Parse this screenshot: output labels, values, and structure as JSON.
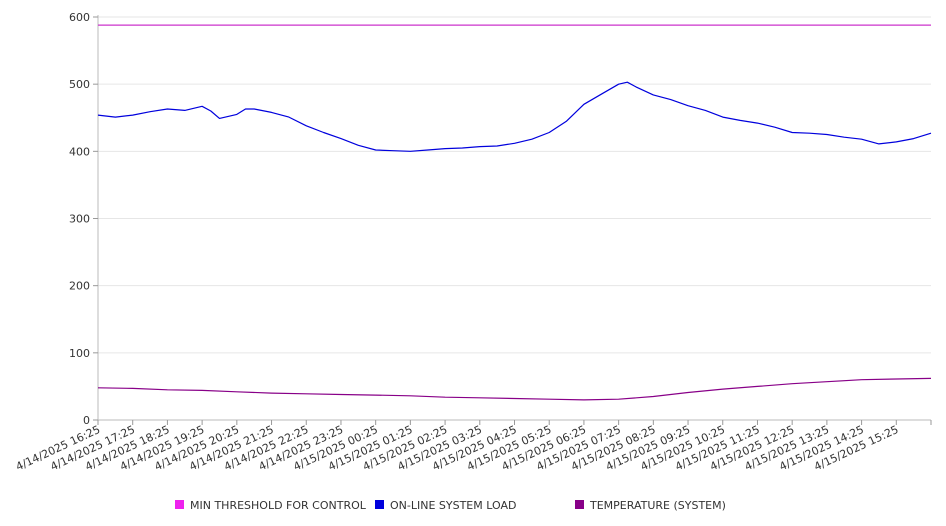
{
  "chart_data": {
    "type": "line",
    "title": "",
    "xlabel": "",
    "ylabel": "",
    "ylim": [
      0,
      600
    ],
    "yticks": [
      "0",
      "100",
      "200",
      "300",
      "400",
      "500",
      "600"
    ],
    "grid": "horizontal",
    "legend_position": "bottom",
    "x_tick_labels": [
      "4/14/2025 16:25",
      "4/14/2025 17:25",
      "4/14/2025 18:25",
      "4/14/2025 19:25",
      "4/14/2025 20:25",
      "4/14/2025 21:25",
      "4/14/2025 22:25",
      "4/14/2025 23:25",
      "4/15/2025 00:25",
      "4/15/2025 01:25",
      "4/15/2025 02:25",
      "4/15/2025 03:25",
      "4/15/2025 04:25",
      "4/15/2025 05:25",
      "4/15/2025 06:25",
      "4/15/2025 07:25",
      "4/15/2025 08:25",
      "4/15/2025 09:25",
      "4/15/2025 10:25",
      "4/15/2025 11:25",
      "4/15/2025 12:25",
      "4/15/2025 13:25",
      "4/15/2025 14:25",
      "4/15/2025 15:25"
    ],
    "x_end": "4/15/2025 16:25",
    "series": [
      {
        "name": "MIN THRESHOLD FOR CONTROL",
        "color": "#cc33cc",
        "points": [
          [
            "4/14/2025 16:25",
            588
          ],
          [
            "4/15/2025 16:25",
            588
          ]
        ]
      },
      {
        "name": "ON-LINE SYSTEM LOAD",
        "color": "#0000dd",
        "points": [
          [
            "4/14/2025 16:25",
            454
          ],
          [
            "4/14/2025 16:55",
            451
          ],
          [
            "4/14/2025 17:25",
            454
          ],
          [
            "4/14/2025 17:55",
            459
          ],
          [
            "4/14/2025 18:25",
            463
          ],
          [
            "4/14/2025 18:55",
            461
          ],
          [
            "4/14/2025 19:25",
            467
          ],
          [
            "4/14/2025 19:40",
            460
          ],
          [
            "4/14/2025 19:55",
            449
          ],
          [
            "4/14/2025 20:25",
            455
          ],
          [
            "4/14/2025 20:40",
            463
          ],
          [
            "4/14/2025 20:55",
            463
          ],
          [
            "4/14/2025 21:25",
            458
          ],
          [
            "4/14/2025 21:55",
            451
          ],
          [
            "4/14/2025 22:25",
            438
          ],
          [
            "4/14/2025 22:55",
            428
          ],
          [
            "4/14/2025 23:25",
            419
          ],
          [
            "4/14/2025 23:55",
            409
          ],
          [
            "4/15/2025 00:25",
            402
          ],
          [
            "4/15/2025 00:55",
            401
          ],
          [
            "4/15/2025 01:25",
            400
          ],
          [
            "4/15/2025 01:55",
            402
          ],
          [
            "4/15/2025 02:25",
            404
          ],
          [
            "4/15/2025 02:55",
            405
          ],
          [
            "4/15/2025 03:25",
            407
          ],
          [
            "4/15/2025 03:55",
            408
          ],
          [
            "4/15/2025 04:25",
            412
          ],
          [
            "4/15/2025 04:55",
            418
          ],
          [
            "4/15/2025 05:25",
            428
          ],
          [
            "4/15/2025 05:55",
            445
          ],
          [
            "4/15/2025 06:25",
            470
          ],
          [
            "4/15/2025 06:55",
            485
          ],
          [
            "4/15/2025 07:25",
            500
          ],
          [
            "4/15/2025 07:40",
            503
          ],
          [
            "4/15/2025 07:55",
            496
          ],
          [
            "4/15/2025 08:25",
            484
          ],
          [
            "4/15/2025 08:55",
            477
          ],
          [
            "4/15/2025 09:25",
            468
          ],
          [
            "4/15/2025 09:55",
            461
          ],
          [
            "4/15/2025 10:25",
            451
          ],
          [
            "4/15/2025 10:55",
            446
          ],
          [
            "4/15/2025 11:25",
            442
          ],
          [
            "4/15/2025 11:55",
            436
          ],
          [
            "4/15/2025 12:25",
            428
          ],
          [
            "4/15/2025 12:55",
            427
          ],
          [
            "4/15/2025 13:25",
            425
          ],
          [
            "4/15/2025 13:55",
            421
          ],
          [
            "4/15/2025 14:25",
            418
          ],
          [
            "4/15/2025 14:55",
            411
          ],
          [
            "4/15/2025 15:25",
            414
          ],
          [
            "4/15/2025 15:55",
            419
          ],
          [
            "4/15/2025 16:25",
            427
          ]
        ]
      },
      {
        "name": "TEMPERATURE (SYSTEM)",
        "color": "#880088",
        "points": [
          [
            "4/14/2025 16:25",
            48
          ],
          [
            "4/14/2025 17:25",
            47
          ],
          [
            "4/14/2025 18:25",
            45
          ],
          [
            "4/14/2025 19:25",
            44
          ],
          [
            "4/14/2025 20:25",
            42
          ],
          [
            "4/14/2025 21:25",
            40
          ],
          [
            "4/14/2025 22:25",
            39
          ],
          [
            "4/14/2025 23:25",
            38
          ],
          [
            "4/15/2025 00:25",
            37
          ],
          [
            "4/15/2025 01:25",
            36
          ],
          [
            "4/15/2025 02:25",
            34
          ],
          [
            "4/15/2025 03:25",
            33
          ],
          [
            "4/15/2025 04:25",
            32
          ],
          [
            "4/15/2025 05:25",
            31
          ],
          [
            "4/15/2025 06:25",
            30
          ],
          [
            "4/15/2025 07:25",
            31
          ],
          [
            "4/15/2025 08:25",
            35
          ],
          [
            "4/15/2025 09:25",
            41
          ],
          [
            "4/15/2025 10:25",
            46
          ],
          [
            "4/15/2025 11:25",
            50
          ],
          [
            "4/15/2025 12:25",
            54
          ],
          [
            "4/15/2025 13:25",
            57
          ],
          [
            "4/15/2025 14:25",
            60
          ],
          [
            "4/15/2025 15:25",
            61
          ],
          [
            "4/15/2025 16:25",
            62
          ]
        ]
      }
    ]
  }
}
